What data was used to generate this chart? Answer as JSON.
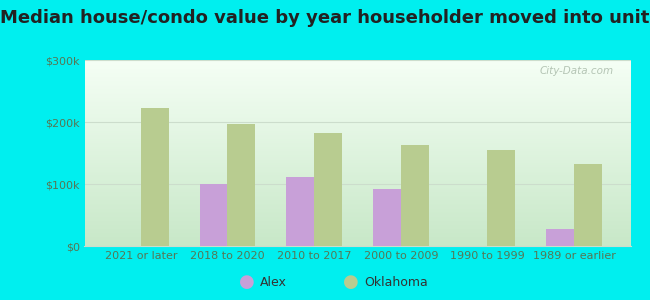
{
  "title": "Median house/condo value by year householder moved into unit",
  "categories": [
    "2021 or later",
    "2018 to 2020",
    "2010 to 2017",
    "2000 to 2009",
    "1990 to 1999",
    "1989 or earlier"
  ],
  "alex_values": [
    null,
    100000,
    112000,
    92000,
    null,
    28000
  ],
  "oklahoma_values": [
    222000,
    197000,
    183000,
    163000,
    155000,
    132000
  ],
  "alex_color": "#c8a0d8",
  "oklahoma_color": "#b8cc90",
  "background_color": "#00efef",
  "plot_bg_color": "#e8f5e8",
  "ylim": [
    0,
    300000
  ],
  "yticks": [
    0,
    100000,
    200000,
    300000
  ],
  "ytick_labels": [
    "$0",
    "$100k",
    "$200k",
    "$300k"
  ],
  "bar_width": 0.32,
  "legend_labels": [
    "Alex",
    "Oklahoma"
  ],
  "watermark": "City-Data.com",
  "grid_color": "#ccddcc",
  "tick_color": "#557755",
  "title_fontsize": 13,
  "axis_fontsize": 8
}
